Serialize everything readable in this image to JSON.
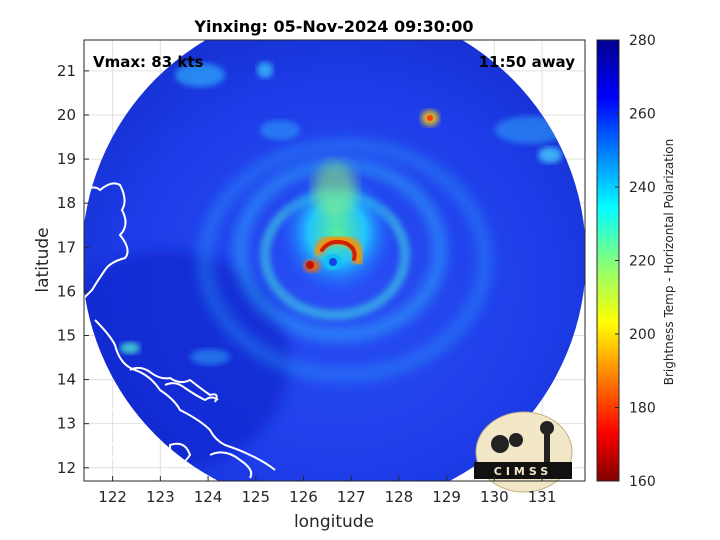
{
  "chart_data": {
    "type": "heatmap",
    "title": "Yinxing: 05-Nov-2024 09:30:00",
    "xlabel": "longitude",
    "ylabel": "latitude",
    "xlim": [
      121.4,
      131.9
    ],
    "ylim": [
      11.7,
      21.7
    ],
    "x_ticks": [
      122,
      123,
      124,
      125,
      126,
      127,
      128,
      129,
      130,
      131
    ],
    "y_ticks": [
      12,
      13,
      14,
      15,
      16,
      17,
      18,
      19,
      20,
      21
    ],
    "grid": true,
    "annotations": {
      "vmax": "Vmax: 83 kts",
      "time_away": "11:50 away"
    },
    "colorbar": {
      "label": "Brightness Temp - Horizontal Polarization",
      "range": [
        160,
        280
      ],
      "ticks": [
        160,
        180,
        200,
        220,
        240,
        260,
        280
      ],
      "colormap": "jet"
    },
    "storm_center": {
      "lon": 126.9,
      "lat": 16.7
    },
    "scan_swath_center": {
      "lon": 126.6,
      "lat": 16.8
    },
    "logo_text": "CIMSS"
  },
  "colors": {
    "background_field": "#1a33e0",
    "land_outline": "#ffffff",
    "colormap_stops": [
      "#7f0000",
      "#ff0000",
      "#ff8000",
      "#ffff00",
      "#80ff80",
      "#00ffff",
      "#0080ff",
      "#0000ff",
      "#00008f"
    ]
  }
}
